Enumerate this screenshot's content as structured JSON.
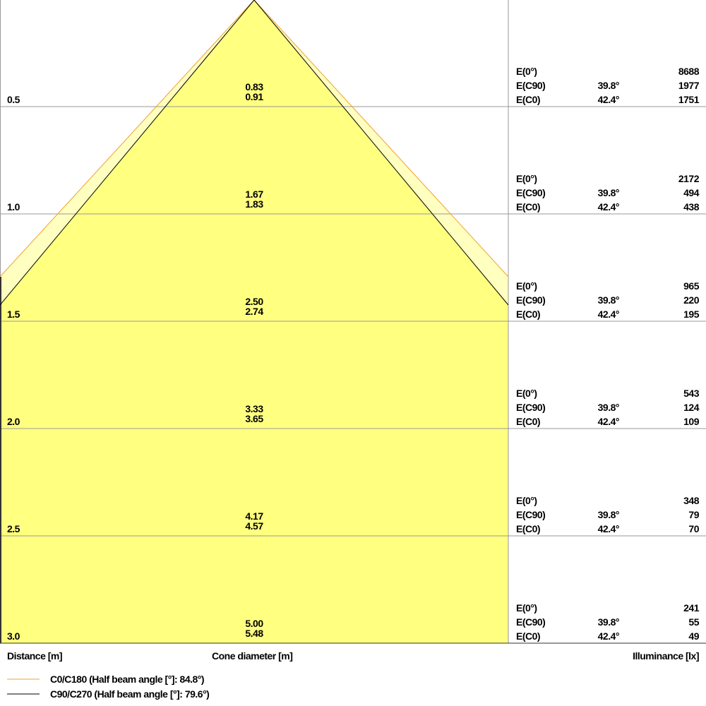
{
  "chart_data": {
    "type": "cone-diagram",
    "distance_label": "Distance [m]",
    "cone_label": "Cone diameter [m]",
    "illuminance_label": "Illuminance [lx]",
    "legend": [
      {
        "name": "C0/C180 (Half beam angle [°]: 84.8°)",
        "color": "#f0a030"
      },
      {
        "name": "C90/C270 (Half beam angle [°]: 79.6°)",
        "color": "#000000"
      }
    ],
    "fill_colors": {
      "inner": "#ffff80",
      "outer": "#ffffc0"
    },
    "rows": [
      {
        "distance": "0.5",
        "d1": "0.83",
        "d2": "0.91",
        "e0": "8688",
        "c90_angle": "39.8°",
        "c90": "1977",
        "c0_angle": "42.4°",
        "c0": "1751"
      },
      {
        "distance": "1.0",
        "d1": "1.67",
        "d2": "1.83",
        "e0": "2172",
        "c90_angle": "39.8°",
        "c90": "494",
        "c0_angle": "42.4°",
        "c0": "438"
      },
      {
        "distance": "1.5",
        "d1": "2.50",
        "d2": "2.74",
        "e0": "965",
        "c90_angle": "39.8°",
        "c90": "220",
        "c0_angle": "42.4°",
        "c0": "195"
      },
      {
        "distance": "2.0",
        "d1": "3.33",
        "d2": "3.65",
        "e0": "543",
        "c90_angle": "39.8°",
        "c90": "124",
        "c0_angle": "42.4°",
        "c0": "109"
      },
      {
        "distance": "2.5",
        "d1": "4.17",
        "d2": "4.57",
        "e0": "348",
        "c90_angle": "39.8°",
        "c90": "79",
        "c0_angle": "42.4°",
        "c0": "70"
      },
      {
        "distance": "3.0",
        "d1": "5.00",
        "d2": "5.48",
        "e0": "241",
        "c90_angle": "39.8°",
        "c90": "55",
        "c0_angle": "42.4°",
        "c0": "49"
      }
    ],
    "labels": {
      "e0": "E(0°)",
      "e90": "E(C90)",
      "ec0": "E(C0)"
    }
  }
}
